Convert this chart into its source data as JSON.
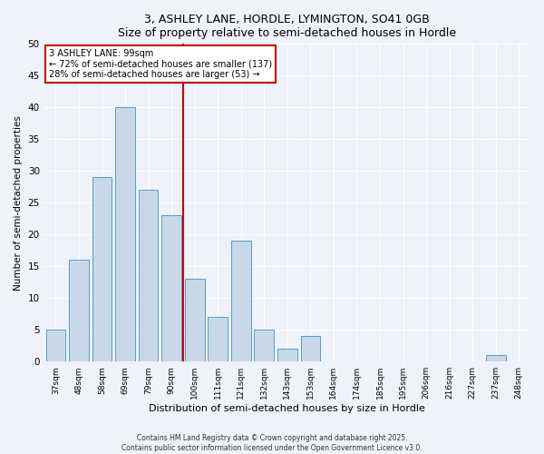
{
  "title": "3, ASHLEY LANE, HORDLE, LYMINGTON, SO41 0GB",
  "subtitle": "Size of property relative to semi-detached houses in Hordle",
  "xlabel": "Distribution of semi-detached houses by size in Hordle",
  "ylabel": "Number of semi-detached properties",
  "bar_labels": [
    "37sqm",
    "48sqm",
    "58sqm",
    "69sqm",
    "79sqm",
    "90sqm",
    "100sqm",
    "111sqm",
    "121sqm",
    "132sqm",
    "143sqm",
    "153sqm",
    "164sqm",
    "174sqm",
    "185sqm",
    "195sqm",
    "206sqm",
    "216sqm",
    "227sqm",
    "237sqm",
    "248sqm"
  ],
  "bar_values": [
    5,
    16,
    29,
    40,
    27,
    23,
    13,
    7,
    19,
    5,
    2,
    4,
    0,
    0,
    0,
    0,
    0,
    0,
    0,
    1,
    0
  ],
  "bar_color": "#c8d8e8",
  "bar_edge_color": "#5a9cc5",
  "vline_color": "#cc0000",
  "annotation_title": "3 ASHLEY LANE: 99sqm",
  "annotation_line1": "← 72% of semi-detached houses are smaller (137)",
  "annotation_line2": "28% of semi-detached houses are larger (53) →",
  "annotation_box_color": "#cc0000",
  "ylim": [
    0,
    50
  ],
  "yticks": [
    0,
    5,
    10,
    15,
    20,
    25,
    30,
    35,
    40,
    45,
    50
  ],
  "bg_color": "#eef2fb",
  "grid_color": "#ffffff",
  "footer1": "Contains HM Land Registry data © Crown copyright and database right 2025.",
  "footer2": "Contains public sector information licensed under the Open Government Licence v3.0."
}
